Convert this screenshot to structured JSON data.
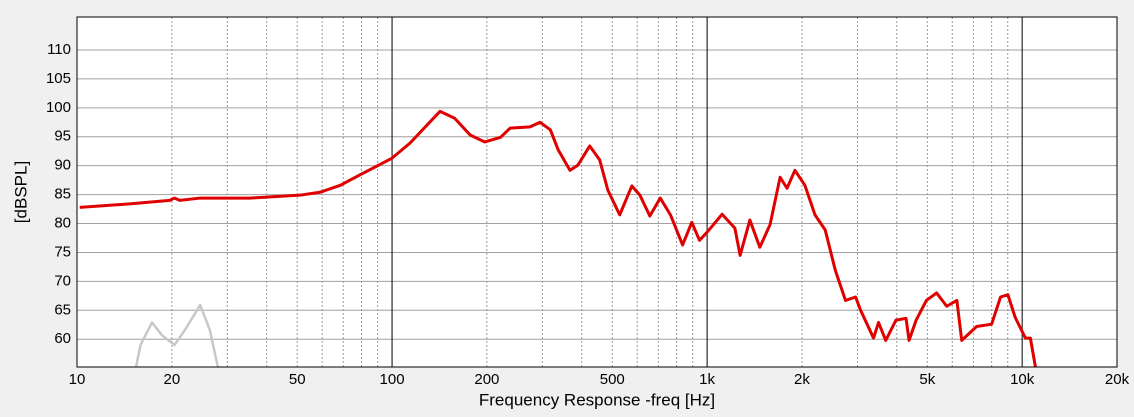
{
  "chart_data": {
    "type": "line",
    "x_label": "Frequency Response -freq [Hz]",
    "y_label": "[dBSPL]",
    "log_x": true,
    "grid": true,
    "xlim": [
      10,
      20000
    ],
    "ylim": [
      55.2,
      115.7
    ],
    "xticks": [
      10,
      20,
      50,
      100,
      200,
      500,
      {
        "value": 1000,
        "label": "1k"
      },
      {
        "value": 2000,
        "label": "2k"
      },
      {
        "value": 5000,
        "label": "5k"
      },
      {
        "value": 10000,
        "label": "10k"
      },
      {
        "value": 20000,
        "label": "20k"
      }
    ],
    "yticks": [
      60,
      65,
      70,
      75,
      80,
      85,
      90,
      95,
      100,
      105,
      110
    ],
    "series": [
      {
        "color": "#e00000",
        "x": [
          10.2,
          14.7,
          19.7,
          20.4,
          21.2,
          24.6,
          35.4,
          51,
          59,
          68.5,
          79,
          100,
          114,
          142,
          158,
          177,
          197,
          221,
          237,
          274,
          295,
          318,
          337,
          367,
          389,
          424,
          456,
          484,
          528,
          577,
          612,
          658,
          710,
          765,
          836,
          894,
          946,
          1000,
          1116,
          1225,
          1273,
          1367,
          1470,
          1584,
          1705,
          1793,
          1900,
          2044,
          2200,
          2370,
          2553,
          2750,
          2960,
          3071,
          3375,
          3500,
          3690,
          3975,
          4280,
          4375,
          4608,
          4965,
          5350,
          5762,
          6205,
          6430,
          7170,
          8000,
          8540,
          9010,
          9500,
          10240,
          10620,
          11020
        ],
        "values": [
          82.8,
          83.4,
          84.0,
          84.4,
          84.0,
          84.4,
          84.4,
          84.9,
          85.4,
          86.6,
          88.4,
          91.3,
          93.9,
          99.4,
          98.2,
          95.3,
          94.1,
          94.9,
          96.5,
          96.7,
          97.5,
          96.2,
          92.7,
          89.2,
          90.1,
          93.4,
          91.0,
          85.8,
          81.5,
          86.5,
          84.9,
          81.3,
          84.4,
          81.5,
          76.3,
          80.2,
          77.1,
          78.5,
          81.6,
          79.2,
          74.5,
          80.6,
          75.9,
          79.8,
          88.0,
          86.1,
          89.2,
          86.6,
          81.5,
          78.9,
          71.9,
          66.7,
          67.3,
          65.0,
          60.2,
          62.9,
          59.8,
          63.3,
          63.6,
          59.8,
          63.3,
          66.7,
          68.0,
          65.7,
          66.7,
          59.8,
          62.2,
          62.6,
          67.3,
          67.7,
          63.8,
          60.2,
          60.2,
          55.2
        ]
      },
      {
        "color": "#c8c8c8",
        "x": [
          15.4,
          15.9,
          17.3,
          18.6,
          20.4,
          22.0,
          24.6,
          26.4,
          28.0
        ],
        "values": [
          55.2,
          59.0,
          62.9,
          60.7,
          59.0,
          61.6,
          65.9,
          61.6,
          55.2
        ]
      }
    ]
  }
}
